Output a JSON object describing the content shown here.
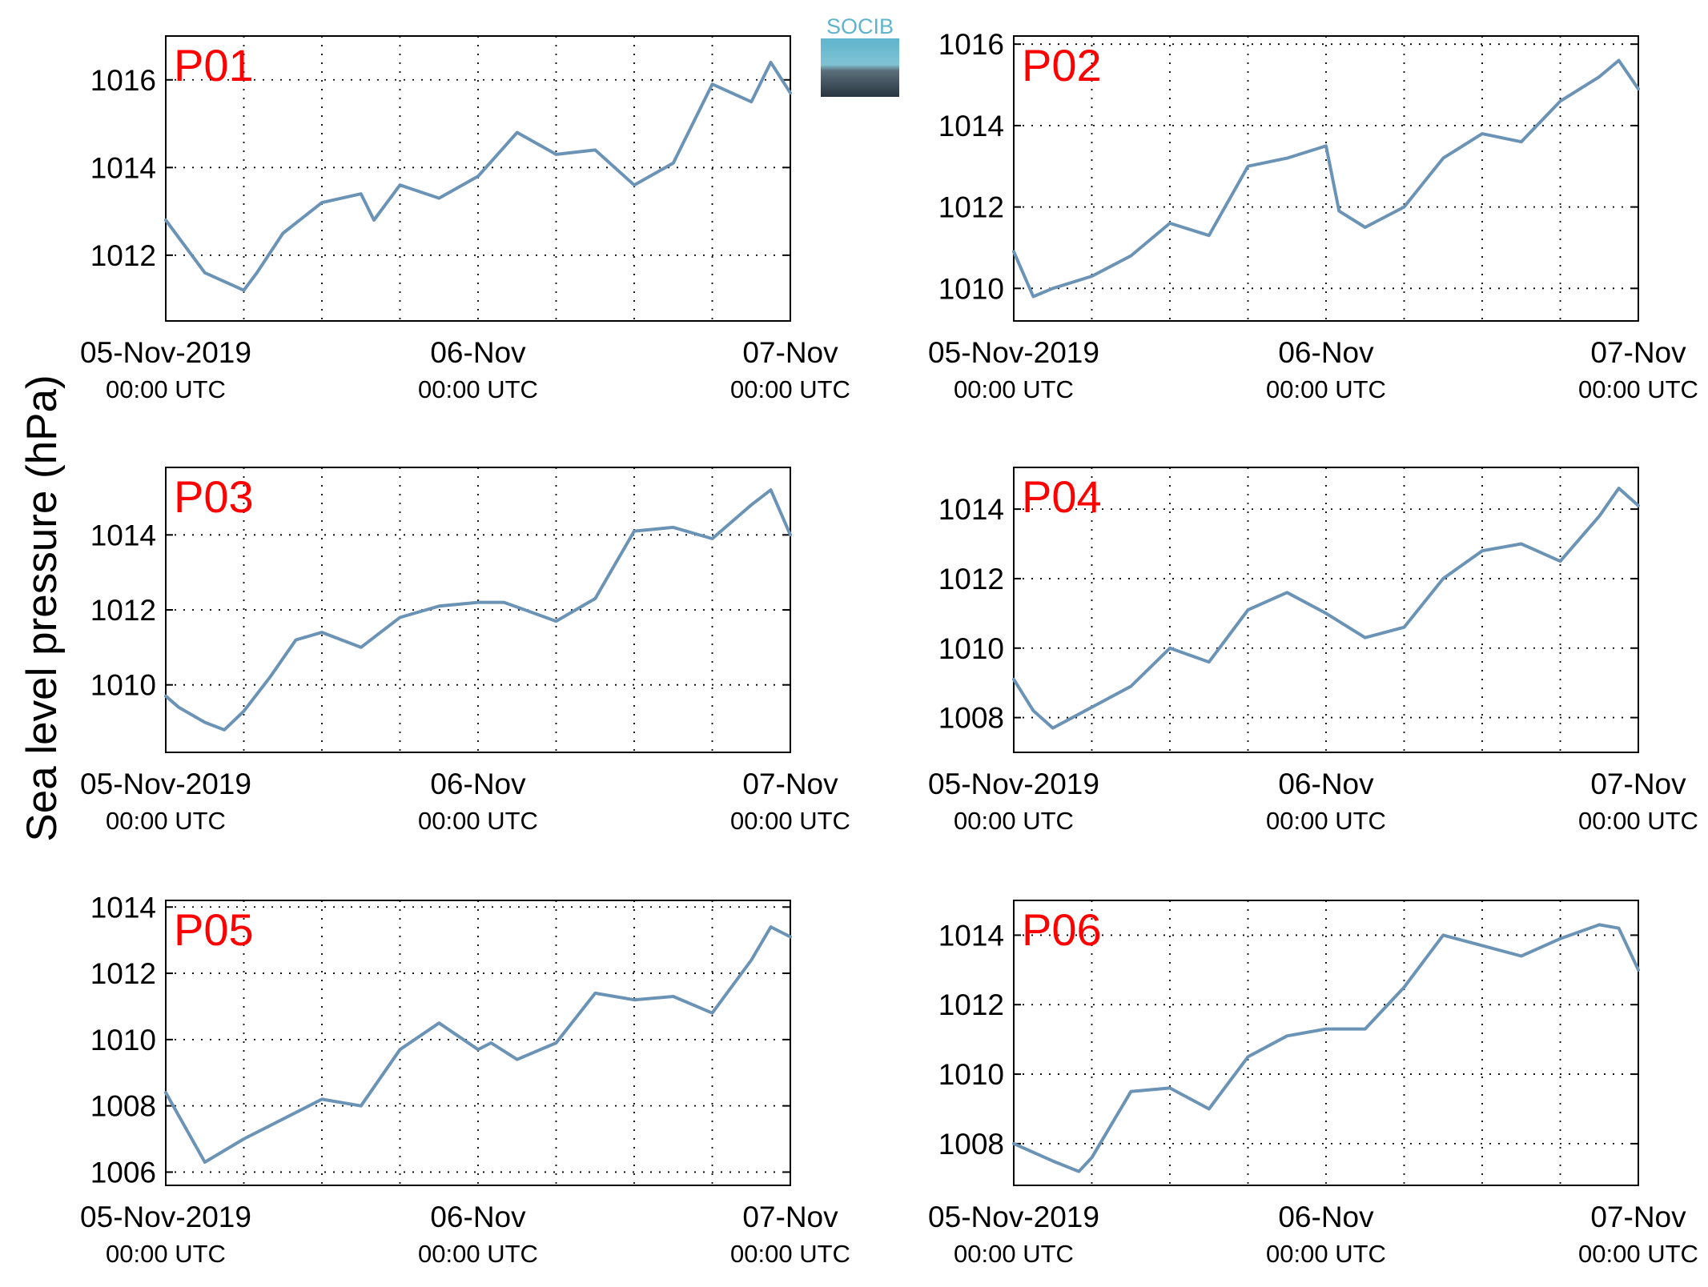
{
  "figure": {
    "ylabel": "Sea level pressure (hPa)",
    "series_color": "#6b93b5",
    "label_color": "#ff0000",
    "logo_text": "SOCIB"
  },
  "chart_data": [
    {
      "type": "line",
      "panel_label": "P01",
      "x_ticks": [
        {
          "line1": "05-Nov-2019",
          "line2": "00:00 UTC"
        },
        {
          "line1": "06-Nov",
          "line2": "00:00 UTC"
        },
        {
          "line1": "07-Nov",
          "line2": "00:00 UTC"
        }
      ],
      "xlim": [
        "2019-11-05 00:00",
        "2019-11-07 00:00"
      ],
      "ylim": [
        1010.5,
        1017.0
      ],
      "yticks": [
        1012,
        1014,
        1016
      ],
      "grid": true,
      "x": [
        "2019-11-05 00:00",
        "2019-11-05 03:00",
        "2019-11-05 06:00",
        "2019-11-05 07:00",
        "2019-11-05 09:00",
        "2019-11-05 12:00",
        "2019-11-05 15:00",
        "2019-11-05 16:00",
        "2019-11-05 18:00",
        "2019-11-05 21:00",
        "2019-11-06 00:00",
        "2019-11-06 03:00",
        "2019-11-06 06:00",
        "2019-11-06 09:00",
        "2019-11-06 12:00",
        "2019-11-06 15:00",
        "2019-11-06 18:00",
        "2019-11-06 21:00",
        "2019-11-06 22:30",
        "2019-11-07 00:00"
      ],
      "y": [
        1012.8,
        1011.6,
        1011.2,
        1011.6,
        1012.5,
        1013.2,
        1013.4,
        1012.8,
        1013.6,
        1013.3,
        1013.8,
        1014.8,
        1014.3,
        1014.4,
        1013.6,
        1014.1,
        1015.9,
        1015.5,
        1016.4,
        1015.7
      ]
    },
    {
      "type": "line",
      "panel_label": "P02",
      "x_ticks": [
        {
          "line1": "05-Nov-2019",
          "line2": "00:00 UTC"
        },
        {
          "line1": "06-Nov",
          "line2": "00:00 UTC"
        },
        {
          "line1": "07-Nov",
          "line2": "00:00 UTC"
        }
      ],
      "xlim": [
        "2019-11-05 00:00",
        "2019-11-07 00:00"
      ],
      "ylim": [
        1009.2,
        1016.2
      ],
      "yticks": [
        1010,
        1012,
        1014,
        1016
      ],
      "grid": true,
      "x": [
        "2019-11-05 00:00",
        "2019-11-05 01:30",
        "2019-11-05 03:00",
        "2019-11-05 06:00",
        "2019-11-05 09:00",
        "2019-11-05 12:00",
        "2019-11-05 15:00",
        "2019-11-05 18:00",
        "2019-11-05 21:00",
        "2019-11-06 00:00",
        "2019-11-06 01:00",
        "2019-11-06 03:00",
        "2019-11-06 06:00",
        "2019-11-06 09:00",
        "2019-11-06 12:00",
        "2019-11-06 15:00",
        "2019-11-06 18:00",
        "2019-11-06 21:00",
        "2019-11-06 22:30",
        "2019-11-07 00:00"
      ],
      "y": [
        1010.9,
        1009.8,
        1010.0,
        1010.3,
        1010.8,
        1011.6,
        1011.3,
        1013.0,
        1013.2,
        1013.5,
        1011.9,
        1011.5,
        1012.0,
        1013.2,
        1013.8,
        1013.6,
        1014.6,
        1015.2,
        1015.6,
        1014.9
      ]
    },
    {
      "type": "line",
      "panel_label": "P03",
      "x_ticks": [
        {
          "line1": "05-Nov-2019",
          "line2": "00:00 UTC"
        },
        {
          "line1": "06-Nov",
          "line2": "00:00 UTC"
        },
        {
          "line1": "07-Nov",
          "line2": "00:00 UTC"
        }
      ],
      "xlim": [
        "2019-11-05 00:00",
        "2019-11-07 00:00"
      ],
      "ylim": [
        1008.2,
        1015.8
      ],
      "yticks": [
        1010,
        1012,
        1014
      ],
      "grid": true,
      "x": [
        "2019-11-05 00:00",
        "2019-11-05 01:00",
        "2019-11-05 03:00",
        "2019-11-05 04:30",
        "2019-11-05 06:00",
        "2019-11-05 08:00",
        "2019-11-05 10:00",
        "2019-11-05 12:00",
        "2019-11-05 15:00",
        "2019-11-05 18:00",
        "2019-11-05 21:00",
        "2019-11-06 00:00",
        "2019-11-06 02:00",
        "2019-11-06 06:00",
        "2019-11-06 09:00",
        "2019-11-06 12:00",
        "2019-11-06 15:00",
        "2019-11-06 18:00",
        "2019-11-06 21:00",
        "2019-11-06 22:30",
        "2019-11-07 00:00"
      ],
      "y": [
        1009.7,
        1009.4,
        1009.0,
        1008.8,
        1009.3,
        1010.2,
        1011.2,
        1011.4,
        1011.0,
        1011.8,
        1012.1,
        1012.2,
        1012.2,
        1011.7,
        1012.3,
        1014.1,
        1014.2,
        1013.9,
        1014.8,
        1015.2,
        1014.0
      ]
    },
    {
      "type": "line",
      "panel_label": "P04",
      "x_ticks": [
        {
          "line1": "05-Nov-2019",
          "line2": "00:00 UTC"
        },
        {
          "line1": "06-Nov",
          "line2": "00:00 UTC"
        },
        {
          "line1": "07-Nov",
          "line2": "00:00 UTC"
        }
      ],
      "xlim": [
        "2019-11-05 00:00",
        "2019-11-07 00:00"
      ],
      "ylim": [
        1007.0,
        1015.2
      ],
      "yticks": [
        1008,
        1010,
        1012,
        1014
      ],
      "grid": true,
      "x": [
        "2019-11-05 00:00",
        "2019-11-05 01:30",
        "2019-11-05 03:00",
        "2019-11-05 06:00",
        "2019-11-05 09:00",
        "2019-11-05 12:00",
        "2019-11-05 15:00",
        "2019-11-05 18:00",
        "2019-11-05 21:00",
        "2019-11-06 00:00",
        "2019-11-06 03:00",
        "2019-11-06 06:00",
        "2019-11-06 09:00",
        "2019-11-06 12:00",
        "2019-11-06 15:00",
        "2019-11-06 18:00",
        "2019-11-06 21:00",
        "2019-11-06 22:30",
        "2019-11-07 00:00"
      ],
      "y": [
        1009.1,
        1008.2,
        1007.7,
        1008.3,
        1008.9,
        1010.0,
        1009.6,
        1011.1,
        1011.6,
        1011.0,
        1010.3,
        1010.6,
        1012.0,
        1012.8,
        1013.0,
        1012.5,
        1013.8,
        1014.6,
        1014.1
      ]
    },
    {
      "type": "line",
      "panel_label": "P05",
      "x_ticks": [
        {
          "line1": "05-Nov-2019",
          "line2": "00:00 UTC"
        },
        {
          "line1": "06-Nov",
          "line2": "00:00 UTC"
        },
        {
          "line1": "07-Nov",
          "line2": "00:00 UTC"
        }
      ],
      "xlim": [
        "2019-11-05 00:00",
        "2019-11-07 00:00"
      ],
      "ylim": [
        1005.6,
        1014.2
      ],
      "yticks": [
        1006,
        1008,
        1010,
        1012,
        1014
      ],
      "grid": true,
      "x": [
        "2019-11-05 00:00",
        "2019-11-05 03:00",
        "2019-11-05 06:00",
        "2019-11-05 09:00",
        "2019-11-05 12:00",
        "2019-11-05 15:00",
        "2019-11-05 18:00",
        "2019-11-05 21:00",
        "2019-11-06 00:00",
        "2019-11-06 01:00",
        "2019-11-06 03:00",
        "2019-11-06 06:00",
        "2019-11-06 09:00",
        "2019-11-06 12:00",
        "2019-11-06 15:00",
        "2019-11-06 18:00",
        "2019-11-06 21:00",
        "2019-11-06 22:30",
        "2019-11-07 00:00"
      ],
      "y": [
        1008.4,
        1006.3,
        1007.0,
        1007.6,
        1008.2,
        1008.0,
        1009.7,
        1010.5,
        1009.7,
        1009.9,
        1009.4,
        1009.9,
        1011.4,
        1011.2,
        1011.3,
        1010.8,
        1012.4,
        1013.4,
        1013.1
      ]
    },
    {
      "type": "line",
      "panel_label": "P06",
      "x_ticks": [
        {
          "line1": "05-Nov-2019",
          "line2": "00:00 UTC"
        },
        {
          "line1": "06-Nov",
          "line2": "00:00 UTC"
        },
        {
          "line1": "07-Nov",
          "line2": "00:00 UTC"
        }
      ],
      "xlim": [
        "2019-11-05 00:00",
        "2019-11-07 00:00"
      ],
      "ylim": [
        1006.8,
        1015.0
      ],
      "yticks": [
        1008,
        1010,
        1012,
        1014
      ],
      "grid": true,
      "x": [
        "2019-11-05 00:00",
        "2019-11-05 03:00",
        "2019-11-05 05:00",
        "2019-11-05 06:00",
        "2019-11-05 09:00",
        "2019-11-05 12:00",
        "2019-11-05 15:00",
        "2019-11-05 18:00",
        "2019-11-05 21:00",
        "2019-11-06 00:00",
        "2019-11-06 03:00",
        "2019-11-06 06:00",
        "2019-11-06 09:00",
        "2019-11-06 12:00",
        "2019-11-06 15:00",
        "2019-11-06 18:00",
        "2019-11-06 21:00",
        "2019-11-06 22:30",
        "2019-11-07 00:00"
      ],
      "y": [
        1008.0,
        1007.5,
        1007.2,
        1007.6,
        1009.5,
        1009.6,
        1009.0,
        1010.5,
        1011.1,
        1011.3,
        1011.3,
        1012.5,
        1014.0,
        1013.7,
        1013.4,
        1013.9,
        1014.3,
        1014.2,
        1013.0
      ]
    }
  ]
}
